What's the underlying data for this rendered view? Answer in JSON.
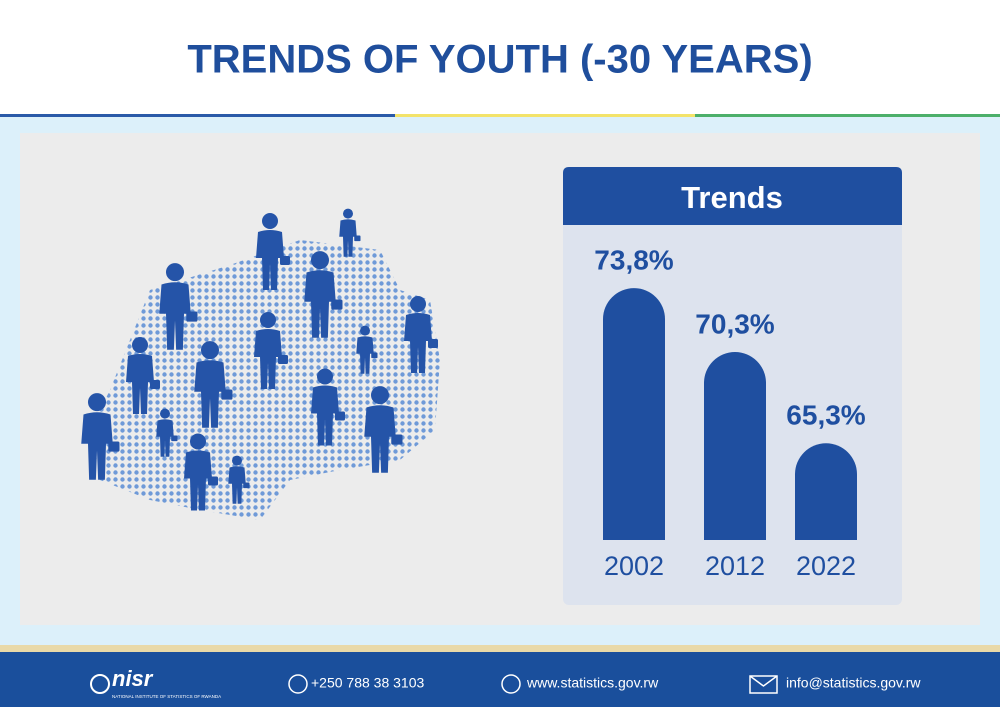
{
  "header": {
    "title": "TRENDS OF YOUTH (-30 YEARS)"
  },
  "chart_data": {
    "type": "bar",
    "title": "Trends",
    "categories": [
      "2002",
      "2012",
      "2022"
    ],
    "values": [
      73.8,
      70.3,
      65.3
    ],
    "value_labels": [
      "73,8%",
      "70,3%",
      "65,3%"
    ],
    "color": "#1f4fa0",
    "ylim": [
      60,
      76
    ]
  },
  "footer": {
    "logo": "nisr",
    "logo_subtitle": "NATIONAL INSTITUTE OF STATISTICS OF RWANDA",
    "phone": "+250 788 38 3103",
    "website": "www.statistics.gov.rw",
    "email": "info@statistics.gov.rw"
  }
}
